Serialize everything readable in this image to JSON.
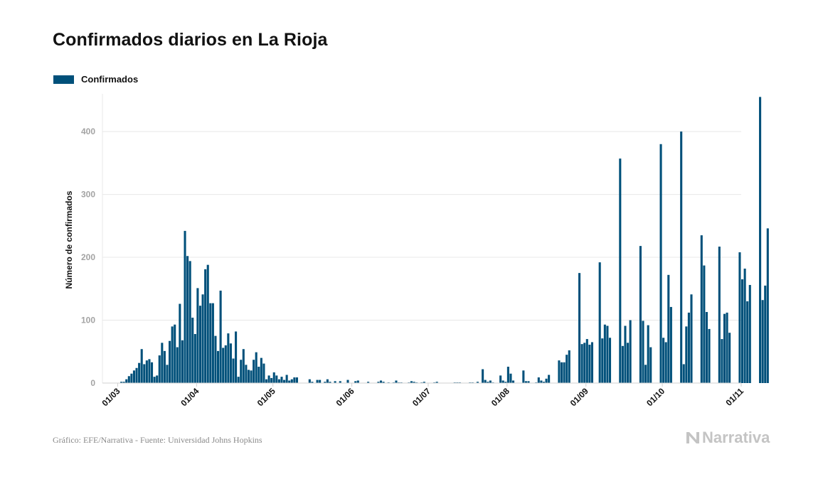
{
  "title": "Confirmados diarios en La Rioja",
  "footer": "Gráfico: EFE/Narrativa - Fuente: Universidad Johns Hopkins",
  "brand": {
    "name": "Narrativa",
    "icon": "narrativa-n-icon",
    "color": "#c4c4c4"
  },
  "colors": {
    "bar": "#00507a",
    "grid": "#e8e8e8"
  },
  "chart_data": {
    "type": "bar",
    "title": "Confirmados diarios en La Rioja",
    "xlabel": "",
    "ylabel": "Número de confirmados",
    "ylim": [
      0,
      460
    ],
    "yticks": [
      0,
      100,
      200,
      300,
      400
    ],
    "xlim": [
      "2020-02-24",
      "2020-11-01"
    ],
    "xticks": [
      "2020-03-01",
      "2020-04-01",
      "2020-05-01",
      "2020-06-01",
      "2020-07-01",
      "2020-08-01",
      "2020-09-01",
      "2020-10-01",
      "2020-11-01"
    ],
    "xtick_labels": [
      "01/03",
      "01/04",
      "01/05",
      "01/06",
      "01/07",
      "01/08",
      "01/09",
      "01/10",
      "01/11"
    ],
    "grid": true,
    "legend": "top-left",
    "series": [
      {
        "name": "Confirmados",
        "color": "#00507a",
        "start_date": "2020-03-01",
        "values": [
          0,
          2,
          2,
          6,
          11,
          15,
          20,
          24,
          32,
          54,
          30,
          36,
          38,
          33,
          10,
          12,
          44,
          64,
          51,
          29,
          67,
          90,
          93,
          57,
          126,
          68,
          242,
          202,
          194,
          104,
          78,
          151,
          123,
          141,
          181,
          188,
          127,
          127,
          75,
          51,
          147,
          56,
          60,
          79,
          63,
          39,
          82,
          10,
          37,
          54,
          29,
          21,
          20,
          37,
          49,
          26,
          40,
          31,
          6,
          12,
          8,
          17,
          12,
          6,
          10,
          5,
          13,
          4,
          6,
          9,
          9,
          0,
          0,
          0,
          0,
          6,
          2,
          0,
          5,
          5,
          0,
          2,
          6,
          2,
          0,
          3,
          0,
          3,
          0,
          0,
          5,
          0,
          0,
          3,
          4,
          0,
          0,
          0,
          2,
          0,
          0,
          0,
          2,
          4,
          2,
          0,
          1,
          0,
          1,
          4,
          1,
          1,
          0,
          0,
          1,
          3,
          2,
          1,
          0,
          1,
          2,
          0,
          0,
          0,
          1,
          2,
          0,
          0,
          0,
          0,
          0,
          0,
          1,
          1,
          1,
          0,
          0,
          0,
          1,
          1,
          0,
          2,
          0,
          22,
          5,
          2,
          4,
          1,
          0,
          0,
          12,
          4,
          2,
          26,
          15,
          4,
          0,
          0,
          0,
          20,
          3,
          3,
          0,
          0,
          1,
          9,
          4,
          2,
          7,
          13,
          0,
          0,
          0,
          36,
          33,
          33,
          45,
          52,
          0,
          0,
          0,
          175,
          62,
          64,
          70,
          61,
          65,
          0,
          0,
          192,
          71,
          93,
          91,
          72,
          0,
          0,
          0,
          357,
          59,
          91,
          64,
          100,
          0,
          0,
          0,
          218,
          99,
          29,
          92,
          57,
          0,
          0,
          0,
          380,
          72,
          65,
          172,
          121,
          0,
          0,
          0,
          400,
          30,
          90,
          112,
          141,
          0,
          0,
          0,
          235,
          187,
          113,
          86,
          0,
          0,
          0,
          217,
          70,
          110,
          112,
          80,
          0,
          0,
          0,
          208,
          165,
          182,
          130,
          156,
          0,
          0,
          0,
          455,
          132,
          155,
          246,
          0,
          0,
          0,
          0,
          0,
          0,
          0,
          0,
          0,
          0,
          0,
          0,
          0,
          0,
          0
        ]
      }
    ]
  }
}
